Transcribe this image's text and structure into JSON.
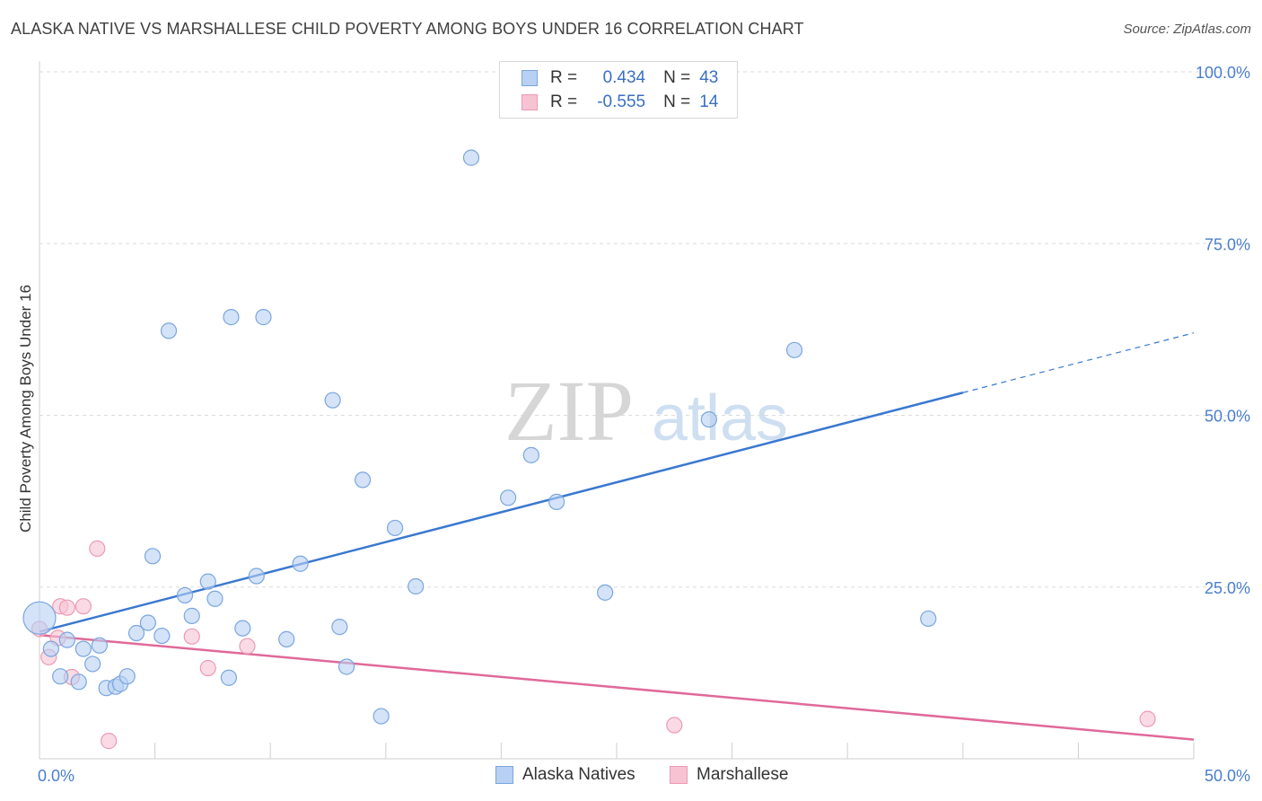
{
  "title": "ALASKA NATIVE VS MARSHALLESE CHILD POVERTY AMONG BOYS UNDER 16 CORRELATION CHART",
  "source": "Source: ZipAtlas.com",
  "watermark": {
    "zip": "ZIP",
    "atlas": "atlas"
  },
  "colors": {
    "blue_fill": "#b7d0f3",
    "blue_stroke": "#7aa6de",
    "blue_line": "#3a78d0",
    "pink_fill": "#f7c3d3",
    "pink_stroke": "#ec9ab4",
    "pink_line": "#e0699a",
    "tick_label": "#4a7ecb",
    "grid": "#dcdcdc"
  },
  "legend": {
    "rows": [
      {
        "r_label": "R =",
        "r_value": "0.434",
        "n_label": "N =",
        "n_value": "43"
      },
      {
        "r_label": "R =",
        "r_value": "-0.555",
        "n_label": "N =",
        "n_value": "14"
      }
    ]
  },
  "chart_data": {
    "type": "scatter",
    "title": "ALASKA NATIVE VS MARSHALLESE CHILD POVERTY AMONG BOYS UNDER 16 CORRELATION CHART",
    "xlabel": "",
    "ylabel": "Child Poverty Among Boys Under 16",
    "xlim": [
      0,
      50
    ],
    "ylim": [
      0,
      100
    ],
    "x_tick_labels": [
      "0.0%",
      "50.0%"
    ],
    "y_ticks": [
      25,
      50,
      75,
      100
    ],
    "y_tick_labels": [
      "25.0%",
      "50.0%",
      "75.0%",
      "100.0%"
    ],
    "grid": true,
    "legend_position": "bottom",
    "series": [
      {
        "name": "Alaska Natives",
        "r": 0.434,
        "n": 43,
        "trend": {
          "x0": 0,
          "y0": 18.5,
          "x1": 40,
          "y1": 53.3,
          "dash_to_x": 50,
          "dash_to_y": 62.0
        },
        "points": [
          {
            "x": 0.0,
            "y": 20.5,
            "big": true
          },
          {
            "x": 0.5,
            "y": 16.0
          },
          {
            "x": 0.9,
            "y": 12.0
          },
          {
            "x": 1.2,
            "y": 17.3
          },
          {
            "x": 1.7,
            "y": 11.2
          },
          {
            "x": 1.9,
            "y": 16.0
          },
          {
            "x": 2.3,
            "y": 13.8
          },
          {
            "x": 2.6,
            "y": 16.5
          },
          {
            "x": 2.9,
            "y": 10.3
          },
          {
            "x": 3.3,
            "y": 10.5
          },
          {
            "x": 3.5,
            "y": 10.9
          },
          {
            "x": 3.8,
            "y": 12.0
          },
          {
            "x": 4.2,
            "y": 18.3
          },
          {
            "x": 4.7,
            "y": 19.8
          },
          {
            "x": 4.9,
            "y": 29.5
          },
          {
            "x": 5.3,
            "y": 17.9
          },
          {
            "x": 5.6,
            "y": 62.3
          },
          {
            "x": 6.3,
            "y": 23.8
          },
          {
            "x": 6.6,
            "y": 20.8
          },
          {
            "x": 7.3,
            "y": 25.8
          },
          {
            "x": 7.6,
            "y": 23.3
          },
          {
            "x": 8.2,
            "y": 11.8
          },
          {
            "x": 8.3,
            "y": 64.3
          },
          {
            "x": 8.8,
            "y": 19.0
          },
          {
            "x": 9.4,
            "y": 26.6
          },
          {
            "x": 9.7,
            "y": 64.3
          },
          {
            "x": 10.7,
            "y": 17.4
          },
          {
            "x": 11.3,
            "y": 28.4
          },
          {
            "x": 12.7,
            "y": 52.2
          },
          {
            "x": 13.0,
            "y": 19.2
          },
          {
            "x": 13.3,
            "y": 13.4
          },
          {
            "x": 14.0,
            "y": 40.6
          },
          {
            "x": 14.8,
            "y": 6.2
          },
          {
            "x": 15.4,
            "y": 33.6
          },
          {
            "x": 16.3,
            "y": 25.1
          },
          {
            "x": 18.7,
            "y": 87.5
          },
          {
            "x": 20.3,
            "y": 38.0
          },
          {
            "x": 21.3,
            "y": 44.2
          },
          {
            "x": 22.4,
            "y": 37.4
          },
          {
            "x": 24.5,
            "y": 24.2
          },
          {
            "x": 29.0,
            "y": 49.4
          },
          {
            "x": 32.7,
            "y": 59.5
          },
          {
            "x": 38.5,
            "y": 20.4
          }
        ]
      },
      {
        "name": "Marshallese",
        "r": -0.555,
        "n": 14,
        "trend": {
          "x0": 0,
          "y0": 18.0,
          "x1": 50,
          "y1": 2.8
        },
        "points": [
          {
            "x": 0.0,
            "y": 18.9
          },
          {
            "x": 0.4,
            "y": 14.8
          },
          {
            "x": 0.8,
            "y": 17.6
          },
          {
            "x": 0.9,
            "y": 22.2
          },
          {
            "x": 1.2,
            "y": 22.0
          },
          {
            "x": 1.4,
            "y": 11.9
          },
          {
            "x": 1.9,
            "y": 22.2
          },
          {
            "x": 2.5,
            "y": 30.6
          },
          {
            "x": 3.0,
            "y": 2.6
          },
          {
            "x": 6.6,
            "y": 17.8
          },
          {
            "x": 7.3,
            "y": 13.2
          },
          {
            "x": 9.0,
            "y": 16.4
          },
          {
            "x": 27.5,
            "y": 4.9
          },
          {
            "x": 48.0,
            "y": 5.8
          }
        ]
      }
    ]
  }
}
